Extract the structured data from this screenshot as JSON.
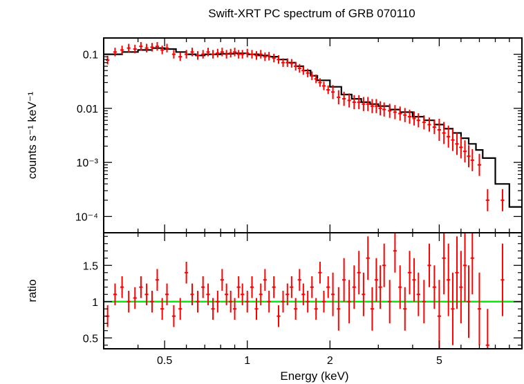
{
  "chart_data": [
    {
      "panel": "spectrum",
      "type": "scatter",
      "title": "Swift-XRT PC spectrum of GRB 070110",
      "ylabel": "counts s⁻¹ keV⁻¹",
      "xscale": "log",
      "yscale": "log",
      "xlim": [
        0.3,
        10
      ],
      "ylim": [
        5e-05,
        0.2
      ],
      "ytick_labels": [
        "0.1",
        "0.01",
        "10⁻³",
        "10⁻⁴"
      ],
      "series": [
        {
          "role": "data",
          "color": "#ff0000",
          "x": [
            0.31,
            0.33,
            0.35,
            0.37,
            0.39,
            0.41,
            0.43,
            0.45,
            0.47,
            0.49,
            0.51,
            0.54,
            0.57,
            0.6,
            0.63,
            0.66,
            0.69,
            0.72,
            0.75,
            0.78,
            0.81,
            0.84,
            0.87,
            0.9,
            0.93,
            0.96,
            1.0,
            1.04,
            1.08,
            1.12,
            1.16,
            1.2,
            1.25,
            1.3,
            1.35,
            1.4,
            1.45,
            1.5,
            1.55,
            1.6,
            1.66,
            1.72,
            1.78,
            1.84,
            1.9,
            1.97,
            2.05,
            2.15,
            2.25,
            2.35,
            2.45,
            2.55,
            2.65,
            2.75,
            2.85,
            2.95,
            3.05,
            3.15,
            3.3,
            3.45,
            3.6,
            3.75,
            3.9,
            4.05,
            4.2,
            4.4,
            4.6,
            4.8,
            5.0,
            5.2,
            5.4,
            5.6,
            5.8,
            6.0,
            6.2,
            6.4,
            6.6,
            7.0,
            7.5,
            8.5
          ],
          "y": [
            0.078,
            0.11,
            0.12,
            0.13,
            0.125,
            0.14,
            0.13,
            0.135,
            0.14,
            0.12,
            0.13,
            0.1,
            0.09,
            0.1,
            0.11,
            0.095,
            0.1,
            0.11,
            0.1,
            0.105,
            0.11,
            0.1,
            0.105,
            0.11,
            0.1,
            0.1,
            0.105,
            0.1,
            0.095,
            0.1,
            0.09,
            0.092,
            0.085,
            0.08,
            0.07,
            0.07,
            0.068,
            0.06,
            0.055,
            0.05,
            0.045,
            0.04,
            0.035,
            0.03,
            0.026,
            0.022,
            0.02,
            0.016,
            0.015,
            0.014,
            0.013,
            0.013,
            0.012,
            0.012,
            0.011,
            0.011,
            0.01,
            0.0095,
            0.009,
            0.0085,
            0.008,
            0.0075,
            0.007,
            0.0065,
            0.006,
            0.0055,
            0.005,
            0.0045,
            0.004,
            0.0035,
            0.003,
            0.0026,
            0.0022,
            0.0019,
            0.0016,
            0.0013,
            0.0011,
            0.0009,
            0.0002,
            0.0002
          ]
        },
        {
          "role": "model",
          "type": "step",
          "color": "#000000",
          "x": [
            0.3,
            0.35,
            0.4,
            0.45,
            0.5,
            0.55,
            0.6,
            0.65,
            0.7,
            0.8,
            0.9,
            1.0,
            1.1,
            1.2,
            1.3,
            1.4,
            1.5,
            1.6,
            1.7,
            1.8,
            2.0,
            2.2,
            2.4,
            2.6,
            2.8,
            3.0,
            3.3,
            3.6,
            4.0,
            4.4,
            4.8,
            5.2,
            5.6,
            6.0,
            6.4,
            6.8,
            7.2,
            8.0,
            9.0,
            10.0
          ],
          "y": [
            0.1,
            0.11,
            0.12,
            0.13,
            0.125,
            0.11,
            0.1,
            0.095,
            0.1,
            0.102,
            0.104,
            0.1,
            0.095,
            0.09,
            0.08,
            0.07,
            0.06,
            0.05,
            0.04,
            0.033,
            0.025,
            0.018,
            0.015,
            0.013,
            0.012,
            0.011,
            0.0095,
            0.0085,
            0.007,
            0.006,
            0.005,
            0.0042,
            0.0035,
            0.0028,
            0.0022,
            0.0017,
            0.0012,
            0.0004,
            0.00015,
            0.00015
          ]
        }
      ]
    },
    {
      "panel": "ratio",
      "type": "scatter",
      "xlabel": "Energy (keV)",
      "ylabel": "ratio",
      "xscale": "log",
      "xlim": [
        0.3,
        10
      ],
      "ylim": [
        0.35,
        1.95
      ],
      "xtick_labels": [
        "0.5",
        "1",
        "2",
        "5"
      ],
      "ytick_labels": [
        "0.5",
        "1",
        "1.5"
      ],
      "reference_line": {
        "y": 1,
        "color": "#00ee00"
      },
      "series": [
        {
          "role": "data",
          "color": "#ff0000",
          "x": [
            0.31,
            0.33,
            0.35,
            0.37,
            0.39,
            0.41,
            0.43,
            0.45,
            0.47,
            0.49,
            0.51,
            0.54,
            0.57,
            0.6,
            0.63,
            0.66,
            0.69,
            0.72,
            0.75,
            0.78,
            0.81,
            0.84,
            0.87,
            0.9,
            0.93,
            0.96,
            1.0,
            1.04,
            1.08,
            1.12,
            1.16,
            1.2,
            1.25,
            1.3,
            1.35,
            1.4,
            1.45,
            1.5,
            1.55,
            1.6,
            1.66,
            1.72,
            1.78,
            1.84,
            1.9,
            1.97,
            2.05,
            2.15,
            2.25,
            2.35,
            2.45,
            2.55,
            2.65,
            2.75,
            2.85,
            2.95,
            3.05,
            3.15,
            3.3,
            3.45,
            3.6,
            3.75,
            3.9,
            4.05,
            4.2,
            4.4,
            4.6,
            4.8,
            5.0,
            5.2,
            5.4,
            5.6,
            5.8,
            6.0,
            6.2,
            6.4,
            6.6,
            7.0,
            7.5,
            8.5
          ],
          "y": [
            0.8,
            1.1,
            1.2,
            1.0,
            1.05,
            1.2,
            1.1,
            1.0,
            1.3,
            0.9,
            1.1,
            0.8,
            0.9,
            1.4,
            1.1,
            1.0,
            1.2,
            1.1,
            0.9,
            1.0,
            1.3,
            1.1,
            1.0,
            0.9,
            1.2,
            1.1,
            1.0,
            1.2,
            0.9,
            1.1,
            1.3,
            1.0,
            1.2,
            0.8,
            1.0,
            1.1,
            1.2,
            0.9,
            1.3,
            1.1,
            1.0,
            1.2,
            0.9,
            1.4,
            1.0,
            1.2,
            1.1,
            0.9,
            1.3,
            1.0,
            1.2,
            1.4,
            1.1,
            1.6,
            0.9,
            1.3,
            1.2,
            1.5,
            1.0,
            1.7,
            1.2,
            0.9,
            1.4,
            1.3,
            1.1,
            1.0,
            1.5,
            1.2,
            0.8,
            1.6,
            1.3,
            0.9,
            1.4,
            1.2,
            1.5,
            1.0,
            1.6,
            0.9,
            0.4,
            1.3
          ]
        }
      ]
    }
  ]
}
